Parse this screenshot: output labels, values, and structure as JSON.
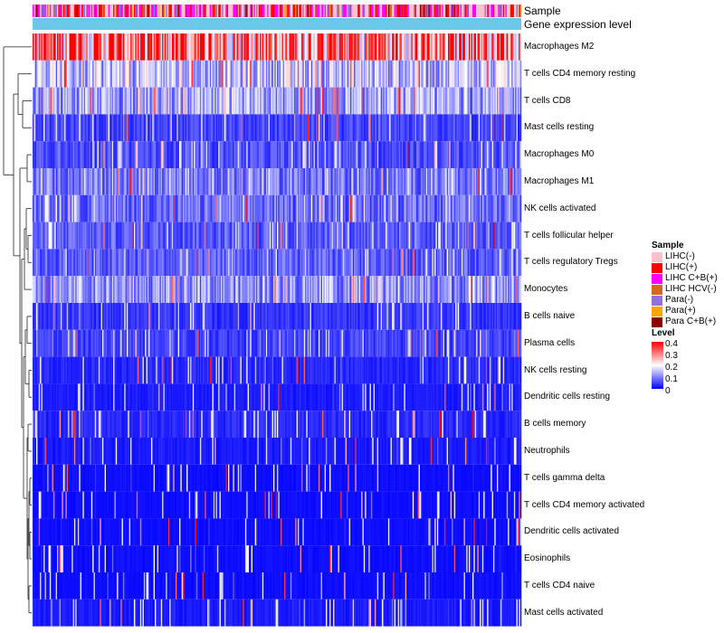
{
  "chart_data": {
    "type": "heatmap",
    "title": "",
    "annotation_tracks": [
      "Sample",
      "Gene expression level"
    ],
    "rows": [
      "Macrophages M2",
      "T cells CD4 memory resting",
      "T cells CD8",
      "Mast cells resting",
      "Macrophages M0",
      "Macrophages M1",
      "NK cells activated",
      "T cells follicular helper",
      "T cells regulatory  Tregs",
      "Monocytes",
      "B cells naive",
      "Plasma cells",
      "NK cells resting",
      "Dendritic cells resting",
      "B cells memory",
      "Neutrophils",
      "T cells gamma delta",
      "T cells CD4 memory activated",
      "Dendritic cells activated",
      "Eosinophils",
      "T cells CD4 naive",
      "Mast cells activated"
    ],
    "row_mean_level": [
      0.32,
      0.15,
      0.12,
      0.05,
      0.06,
      0.09,
      0.08,
      0.07,
      0.07,
      0.11,
      0.04,
      0.05,
      0.03,
      0.02,
      0.03,
      0.02,
      0.01,
      0.01,
      0.01,
      0.01,
      0.01,
      0.02
    ],
    "sample_legend": {
      "title": "Sample",
      "items": [
        {
          "label": "LIHC(-)",
          "color": "#FFC0CB"
        },
        {
          "label": "LIHC(+)",
          "color": "#FF0000"
        },
        {
          "label": "LIHC C+B(+)",
          "color": "#FF00FF"
        },
        {
          "label": "LIHC HCV(-)",
          "color": "#D2691E"
        },
        {
          "label": "Para(-)",
          "color": "#9370DB"
        },
        {
          "label": "Para(+)",
          "color": "#FFA500"
        },
        {
          "label": "Para C+B(+)",
          "color": "#8B0000"
        }
      ]
    },
    "level_legend": {
      "title": "Level",
      "ticks": [
        "0.4",
        "0.3",
        "0.2",
        "0.1",
        "0"
      ],
      "range": [
        0,
        0.4
      ],
      "colors": {
        "low": "#0000FF",
        "mid": "#FFFFFF",
        "high": "#FF0000"
      }
    },
    "gene_expression_color": "#6EC6E9",
    "n_samples_approx": 400
  }
}
